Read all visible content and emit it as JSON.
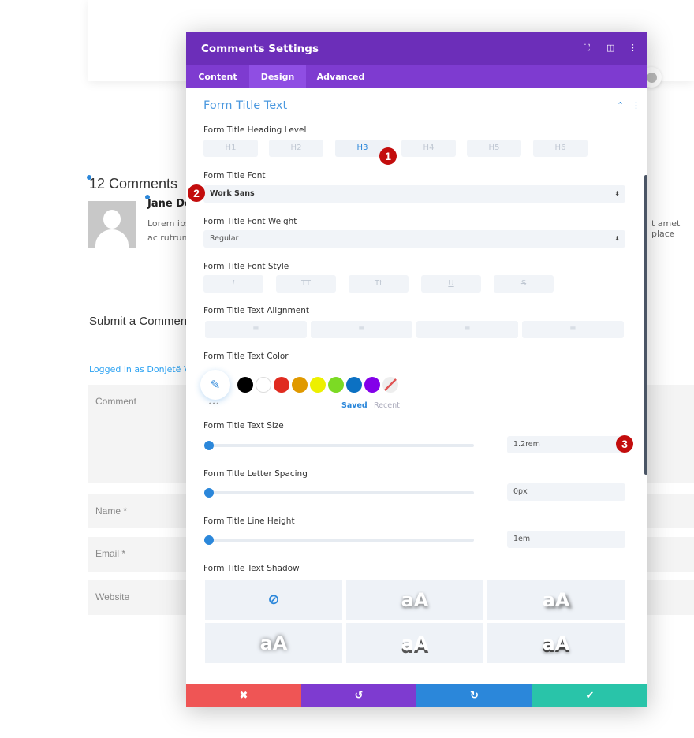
{
  "background": {
    "comments_title": "12 Comments",
    "author": "Jane Doe",
    "comment_line1": "Lorem ips",
    "comment_line2": "ac rutrum",
    "comment_right": "t amet place",
    "submit_title": "Submit a Comment",
    "logged_in": "Logged in as Donjetë Vun",
    "fields": [
      "Comment",
      "Name *",
      "Email *",
      "Website"
    ]
  },
  "panel": {
    "title": "Comments Settings",
    "header_icons": [
      "fullscreen-icon",
      "split-view-icon",
      "more-options-icon"
    ],
    "tabs": [
      {
        "label": "Content",
        "active": false
      },
      {
        "label": "Design",
        "active": true
      },
      {
        "label": "Advanced",
        "active": false
      }
    ],
    "section_title": "Form Title Text",
    "heading_level": {
      "label": "Form Title Heading Level",
      "options": [
        "H1",
        "H2",
        "H3",
        "H4",
        "H5",
        "H6"
      ],
      "selected": "H3"
    },
    "font": {
      "label": "Form Title Font",
      "value": "Work Sans"
    },
    "font_weight": {
      "label": "Form Title Font Weight",
      "value": "Regular"
    },
    "font_style": {
      "label": "Form Title Font Style",
      "options": [
        "I",
        "TT",
        "Tt",
        "U",
        "S"
      ]
    },
    "alignment": {
      "label": "Form Title Text Alignment",
      "options": [
        "left",
        "center",
        "right",
        "justify"
      ]
    },
    "text_color": {
      "label": "Form Title Text Color",
      "swatches": [
        "#000000",
        "#ffffff",
        "#e02b20",
        "#e09900",
        "#edf000",
        "#7cda24",
        "#0c71c3",
        "#8300e9"
      ],
      "saved_label": "Saved",
      "recent_label": "Recent",
      "more": "•••"
    },
    "text_size": {
      "label": "Form Title Text Size",
      "value": "1.2rem",
      "slider_fraction": 0
    },
    "letter_spacing": {
      "label": "Form Title Letter Spacing",
      "value": "0px",
      "slider_fraction": 0
    },
    "line_height": {
      "label": "Form Title Line Height",
      "value": "1em",
      "slider_fraction": 0
    },
    "text_shadow": {
      "label": "Form Title Text Shadow",
      "preview_text": "aA"
    },
    "badges": [
      "1",
      "2",
      "3"
    ],
    "footer": {
      "cancel_color": "#ef5555",
      "undo_color": "#7e3bd0",
      "redo_color": "#2b87da",
      "save_color": "#29c4a9"
    }
  }
}
